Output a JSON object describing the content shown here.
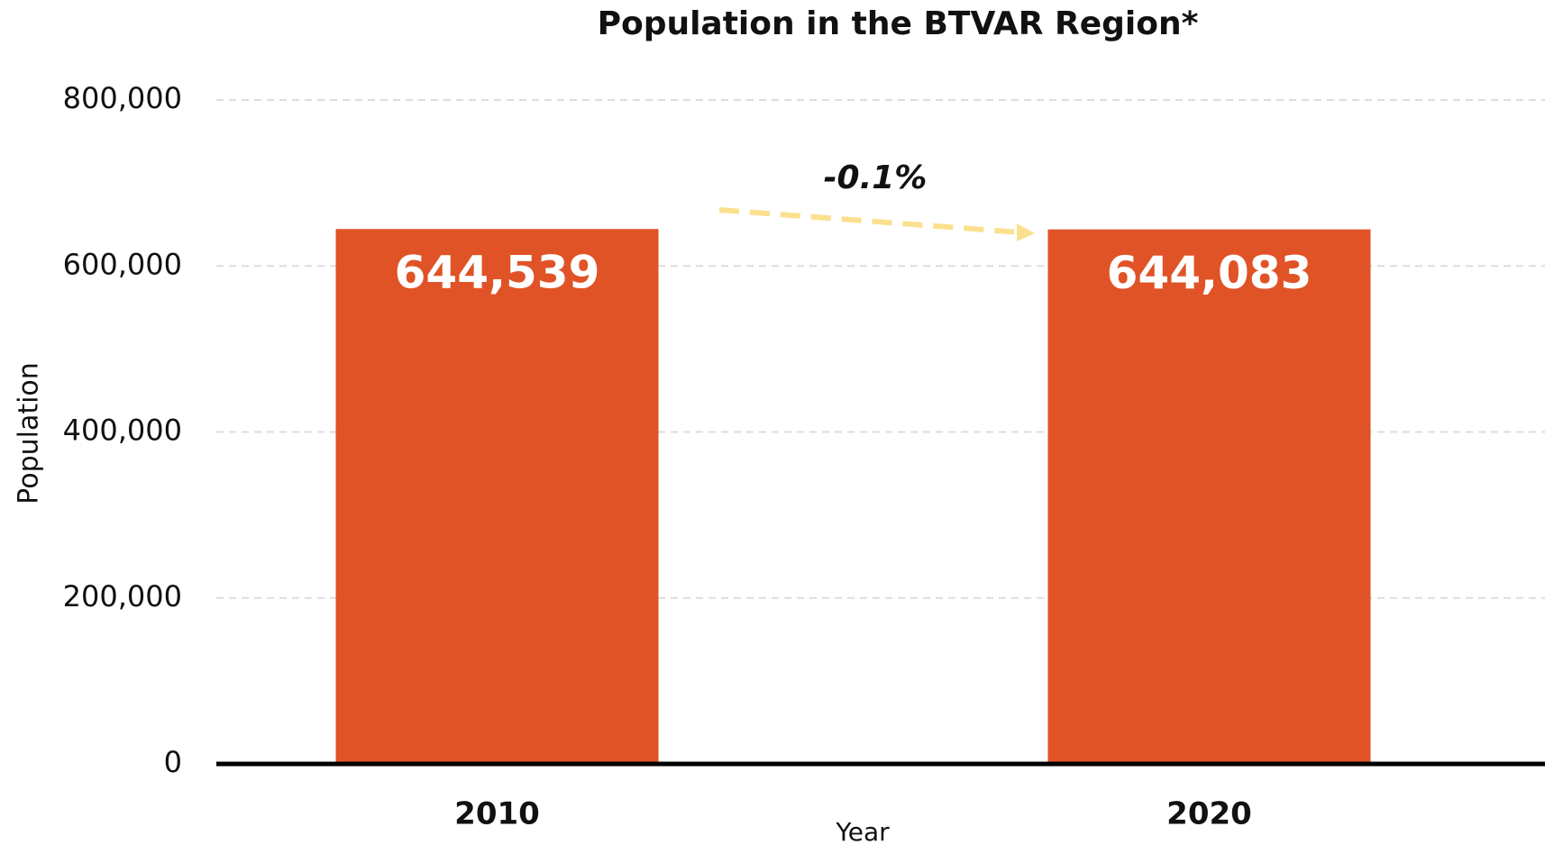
{
  "chart_data": {
    "type": "bar",
    "title": "Population in the BTVAR Region*",
    "x_label": "Year",
    "y_label": "Population",
    "categories": [
      "2010",
      "2020"
    ],
    "values": [
      644539,
      644083
    ],
    "value_labels": [
      "644,539",
      "644,083"
    ],
    "color": "#e05327",
    "annotation": "-0.1%",
    "ylim": [
      0,
      800000
    ],
    "yticks": [
      0,
      {
        "value": 200000,
        "label": "200,000"
      },
      {
        "value": 400000,
        "label": "400,000"
      },
      {
        "value": 600000,
        "label": "600,000"
      },
      {
        "value": 800000,
        "label": "800,000"
      }
    ],
    "grid": true
  }
}
